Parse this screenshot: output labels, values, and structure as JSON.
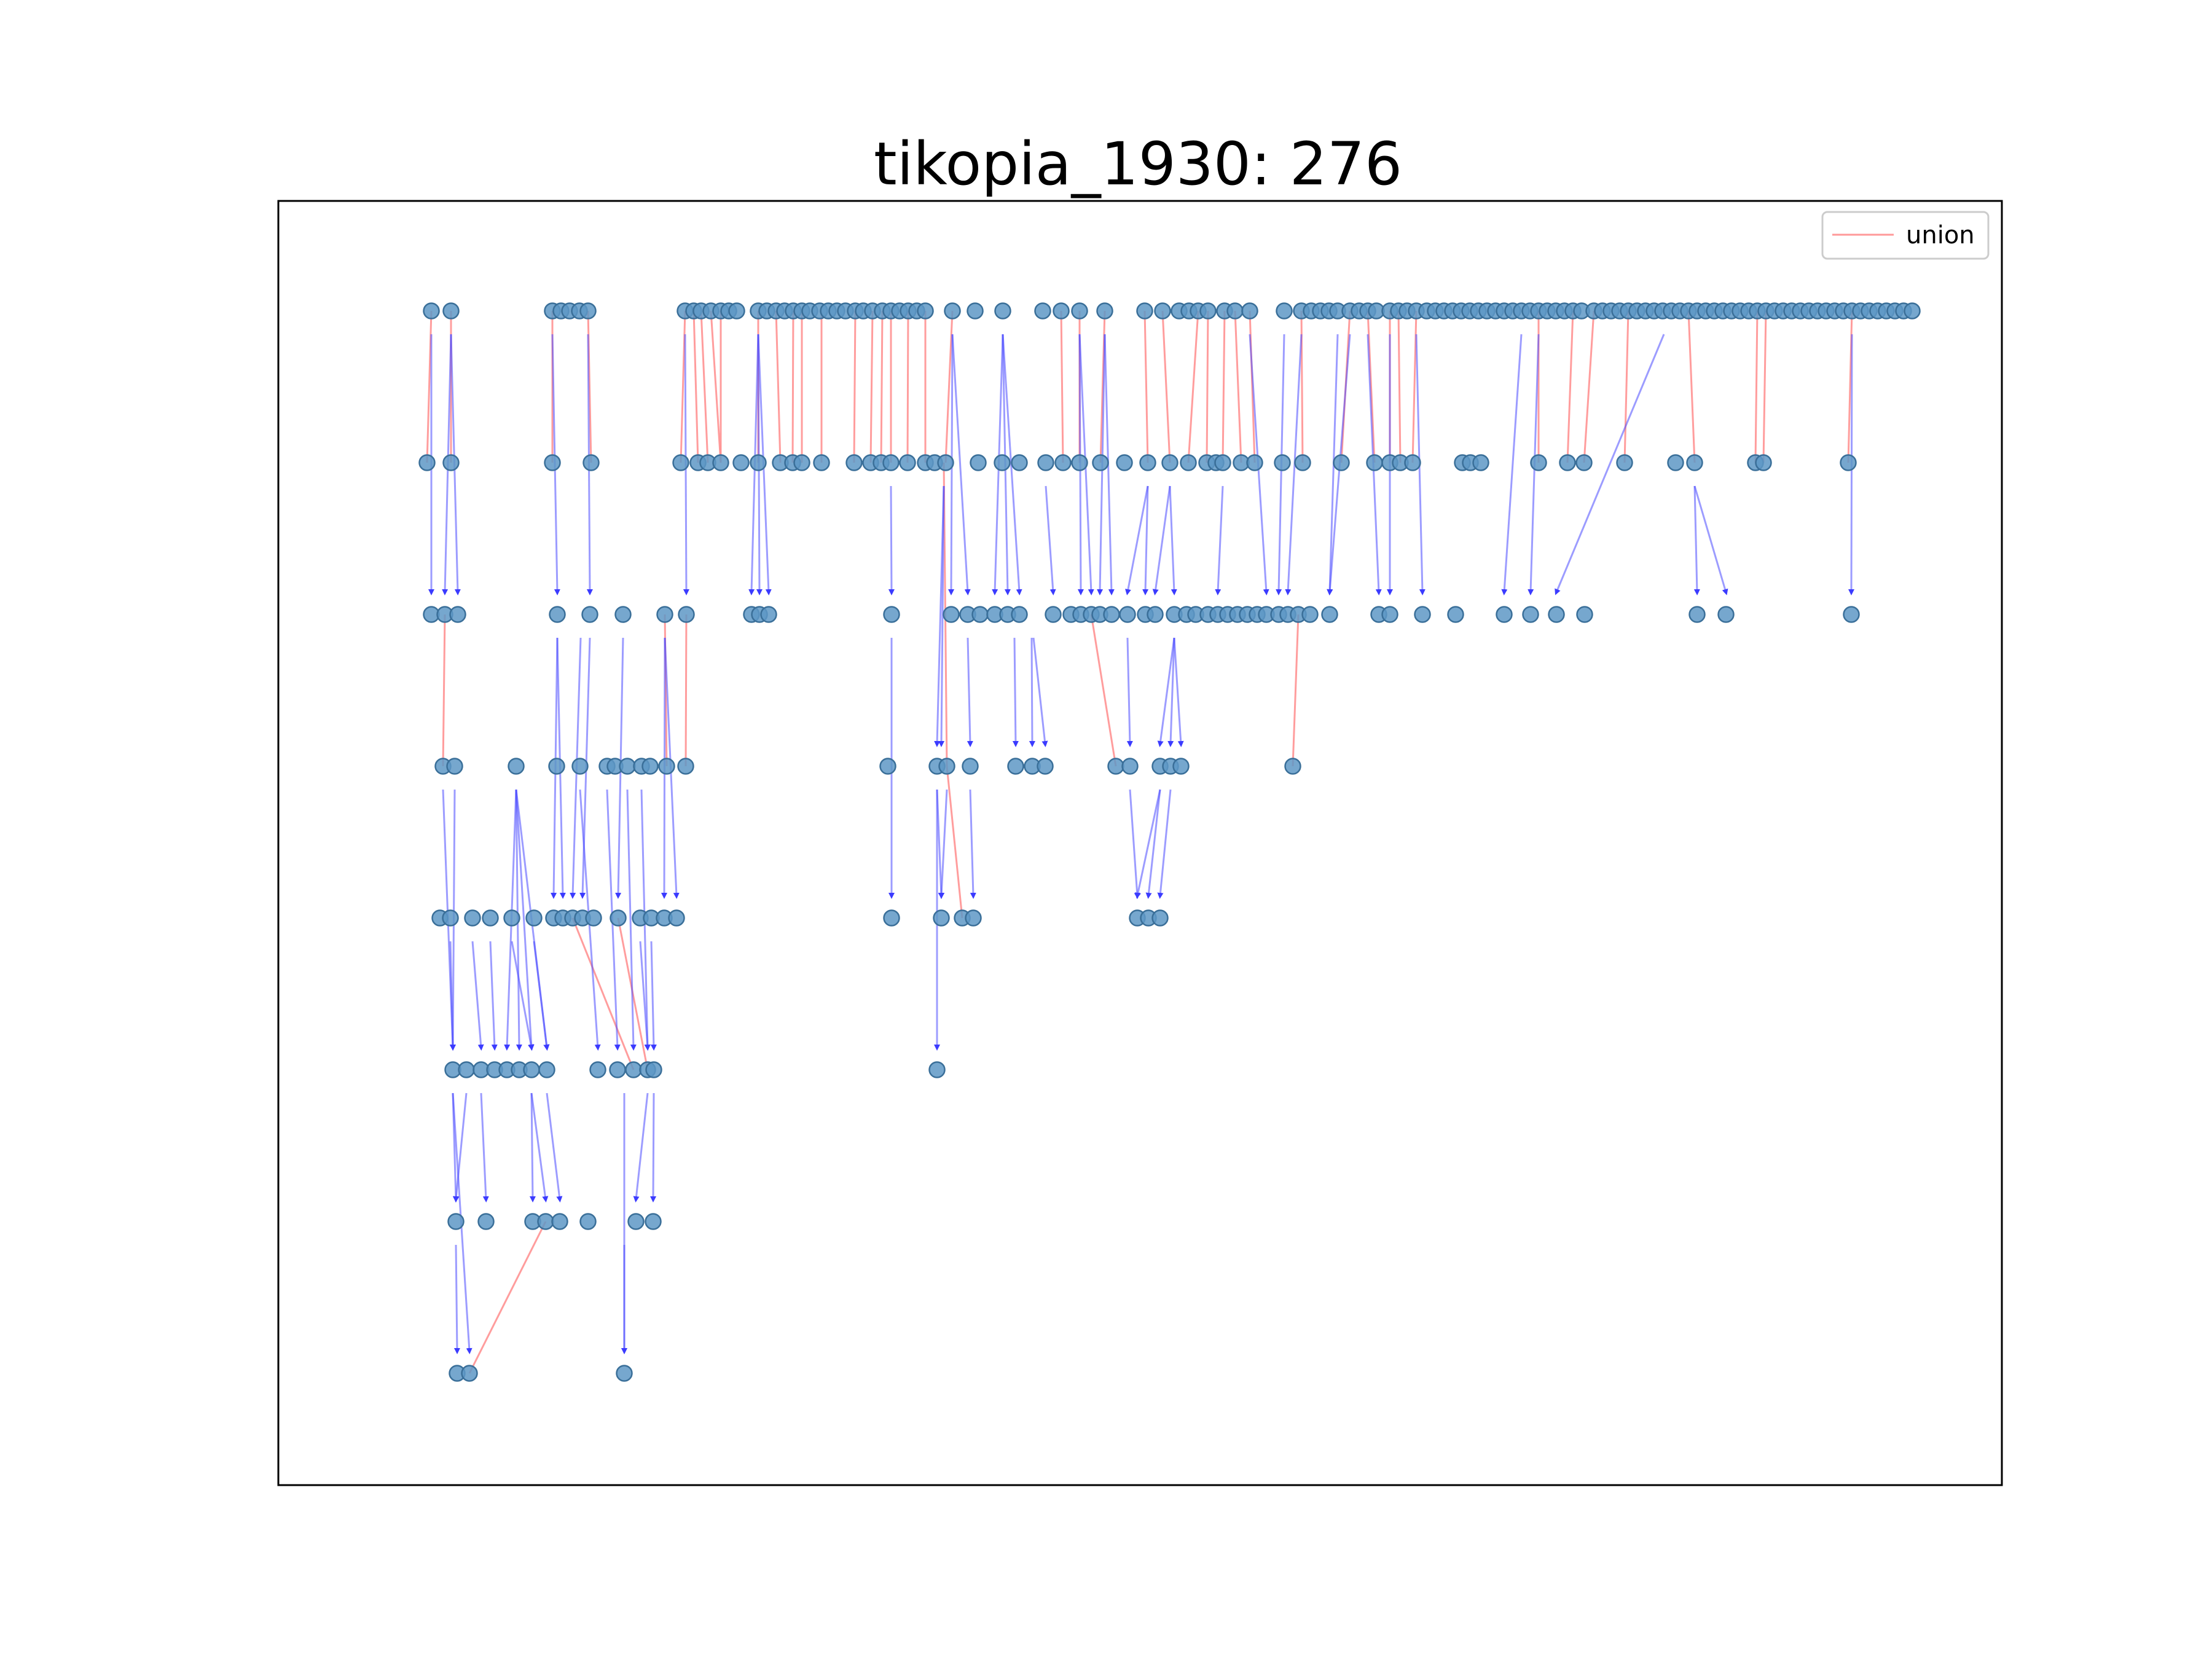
{
  "title": "tikopia_1930: 276",
  "legend": {
    "entries": [
      {
        "label": "union",
        "color": "#ff9999"
      }
    ],
    "position": "upper right"
  },
  "colors": {
    "node": "#5e98c6",
    "node_edge": "#3a6f99",
    "union_edge": "#ff8c8c",
    "parent_edge": "#4a4aff"
  }
}
